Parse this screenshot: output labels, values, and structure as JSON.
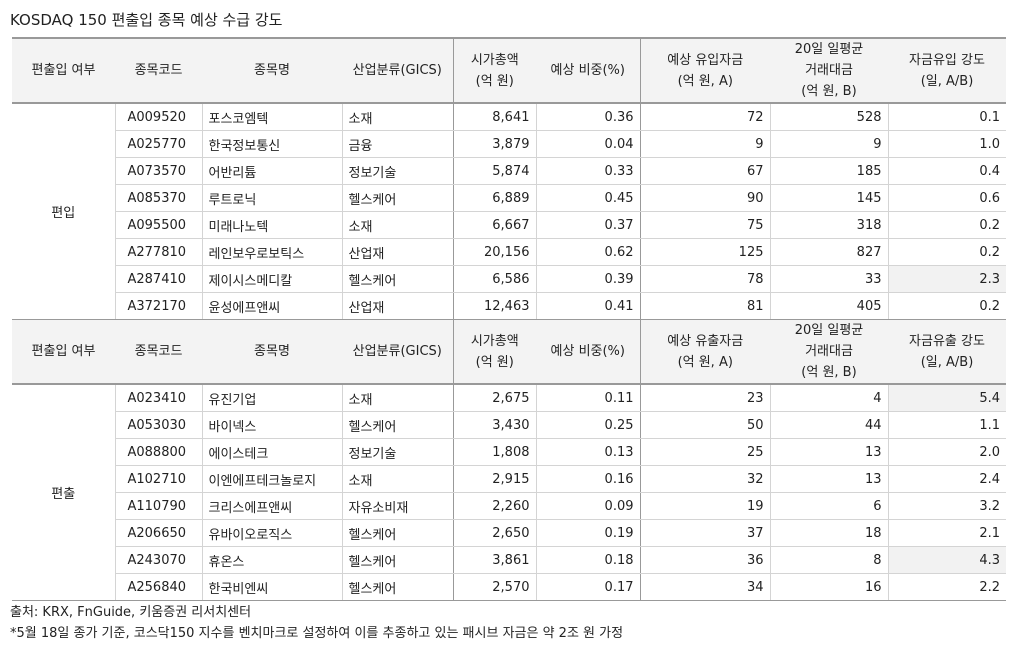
{
  "title": "KOSDAQ 150 편출입 종목 예상 수급 강도",
  "header_in": [
    "편출입 여부",
    "종목코드",
    "종목명",
    "산업분류(GICS)",
    "시가총액\n(억 원)",
    "예상 비중(%)",
    "예상 유입자금\n(억 원, A)",
    "20일 일평균\n거래대금\n(억 원, B)",
    "자금유입 강도\n(일, A/B)"
  ],
  "header_out": [
    "편출입 여부",
    "종목코드",
    "종목명",
    "산업분류(GICS)",
    "시가총액\n(억 원)",
    "예상 비중(%)",
    "예상 유출자금\n(억 원, A)",
    "20일 일평균\n거래대금\n(억 원, B)",
    "자금유출 강도\n(일, A/B)"
  ],
  "group_in": "편입",
  "group_out": "편출",
  "rows_in": [
    [
      "A009520",
      "포스코엠텍",
      "소재",
      "8,641",
      "0.36",
      "72",
      "528",
      "0.1"
    ],
    [
      "A025770",
      "한국정보통신",
      "금융",
      "3,879",
      "0.04",
      "9",
      "9",
      "1.0"
    ],
    [
      "A073570",
      "어반리튬",
      "정보기술",
      "5,874",
      "0.33",
      "67",
      "185",
      "0.4"
    ],
    [
      "A085370",
      "루트로닉",
      "헬스케어",
      "6,889",
      "0.45",
      "90",
      "145",
      "0.6"
    ],
    [
      "A095500",
      "미래나노텍",
      "소재",
      "6,667",
      "0.37",
      "75",
      "318",
      "0.2"
    ],
    [
      "A277810",
      "레인보우로보틱스",
      "산업재",
      "20,156",
      "0.62",
      "125",
      "827",
      "0.2"
    ],
    [
      "A287410",
      "제이시스메디칼",
      "헬스케어",
      "6,586",
      "0.39",
      "78",
      "33",
      "2.3"
    ],
    [
      "A372170",
      "윤성에프앤씨",
      "산업재",
      "12,463",
      "0.41",
      "81",
      "405",
      "0.2"
    ]
  ],
  "highlight_in": [
    false,
    false,
    false,
    false,
    false,
    false,
    true,
    false
  ],
  "rows_out": [
    [
      "A023410",
      "유진기업",
      "소재",
      "2,675",
      "0.11",
      "23",
      "4",
      "5.4"
    ],
    [
      "A053030",
      "바이넥스",
      "헬스케어",
      "3,430",
      "0.25",
      "50",
      "44",
      "1.1"
    ],
    [
      "A088800",
      "에이스테크",
      "정보기술",
      "1,808",
      "0.13",
      "25",
      "13",
      "2.0"
    ],
    [
      "A102710",
      "이엔에프테크놀로지",
      "소재",
      "2,915",
      "0.16",
      "32",
      "13",
      "2.4"
    ],
    [
      "A110790",
      "크리스에프앤씨",
      "자유소비재",
      "2,260",
      "0.09",
      "19",
      "6",
      "3.2"
    ],
    [
      "A206650",
      "유바이오로직스",
      "헬스케어",
      "2,650",
      "0.19",
      "37",
      "18",
      "2.1"
    ],
    [
      "A243070",
      "휴온스",
      "헬스케어",
      "3,861",
      "0.18",
      "36",
      "8",
      "4.3"
    ],
    [
      "A256840",
      "한국비엔씨",
      "헬스케어",
      "2,570",
      "0.17",
      "34",
      "16",
      "2.2"
    ]
  ],
  "highlight_out": [
    true,
    false,
    false,
    false,
    false,
    false,
    true,
    false
  ],
  "source": "출처: KRX, FnGuide, 키움증권 리서치센터",
  "footnote": "*5월 18일 종가 기준, 코스닥150 지수를 벤치마크로 설정하여 이를 추종하고 있는 패시브 자금은 약 2조 원 가정"
}
